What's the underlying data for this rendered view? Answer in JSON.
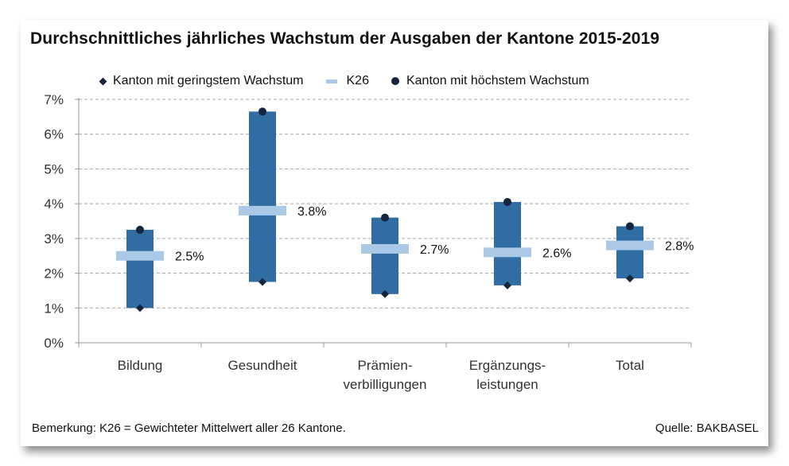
{
  "title": "Durchschnittliches jährliches Wachstum der Ausgaben der Kantone 2015-2019",
  "legend": [
    {
      "label": "Kanton mit geringstem Wachstum",
      "marker": "diamond"
    },
    {
      "label": "K26",
      "marker": "dash"
    },
    {
      "label": "Kanton mit höchstem Wachstum",
      "marker": "dot"
    }
  ],
  "colors": {
    "bar": "#2f6da4",
    "k26": "#a9c9e6",
    "marker": "#15253d",
    "grid": "#a6a6a6"
  },
  "chart_data": {
    "type": "bar",
    "subtype": "floating-range-with-average",
    "categories": [
      [
        "Bildung"
      ],
      [
        "Gesundheit"
      ],
      [
        "Prämien-",
        "verbilligungen"
      ],
      [
        "Ergänzungs-",
        "leistungen"
      ],
      [
        "Total"
      ]
    ],
    "series": [
      {
        "name": "Kanton mit geringstem Wachstum",
        "values": [
          1.0,
          1.75,
          1.4,
          1.65,
          1.85
        ]
      },
      {
        "name": "K26",
        "values": [
          2.5,
          3.8,
          2.7,
          2.6,
          2.8
        ]
      },
      {
        "name": "Kanton mit höchstem Wachstum",
        "values": [
          3.25,
          6.65,
          3.6,
          4.05,
          3.35
        ]
      }
    ],
    "data_labels": [
      "2.5%",
      "3.8%",
      "2.7%",
      "2.6%",
      "2.8%"
    ],
    "y_ticks": [
      "0%",
      "1%",
      "2%",
      "3%",
      "4%",
      "5%",
      "6%",
      "7%"
    ],
    "ylim": [
      0,
      7
    ],
    "grid": true,
    "legend_position": "top"
  },
  "footer": {
    "note": "Bemerkung: K26 = Gewichteter Mittelwert aller 26 Kantone.",
    "source": "Quelle: BAKBASEL"
  }
}
